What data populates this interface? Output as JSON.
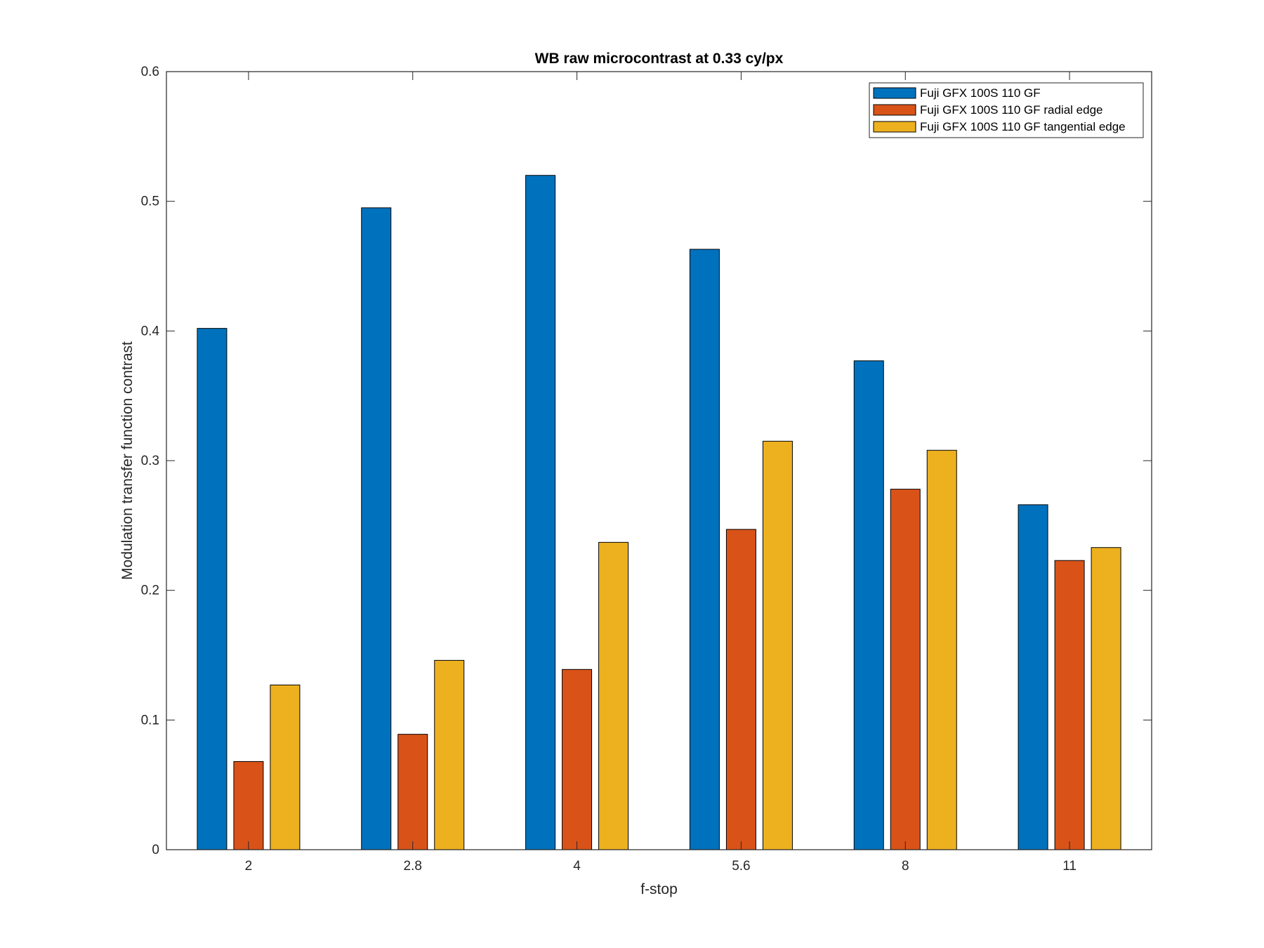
{
  "chart_data": {
    "type": "bar",
    "title": "WB raw  microcontrast at 0.33 cy/px",
    "xlabel": "f-stop",
    "ylabel": "Modulation transfer function contrast",
    "categories": [
      "2",
      "2.8",
      "4",
      "5.6",
      "8",
      "11"
    ],
    "ylim": [
      0,
      0.6
    ],
    "yticks": [
      "0",
      "0.1",
      "0.2",
      "0.3",
      "0.4",
      "0.5",
      "0.6"
    ],
    "grid": false,
    "legend_position": "top-right",
    "series": [
      {
        "name": "Fuji GFX 100S 110 GF",
        "color": "#0072BD",
        "values": [
          0.402,
          0.495,
          0.52,
          0.463,
          0.377,
          0.266
        ]
      },
      {
        "name": "Fuji GFX 100S 110 GF radial edge",
        "color": "#D95319",
        "values": [
          0.068,
          0.089,
          0.139,
          0.247,
          0.278,
          0.223
        ]
      },
      {
        "name": "Fuji GFX 100S 110 GF tangential edge",
        "color": "#EDB120",
        "values": [
          0.127,
          0.146,
          0.237,
          0.315,
          0.308,
          0.233
        ]
      }
    ]
  }
}
